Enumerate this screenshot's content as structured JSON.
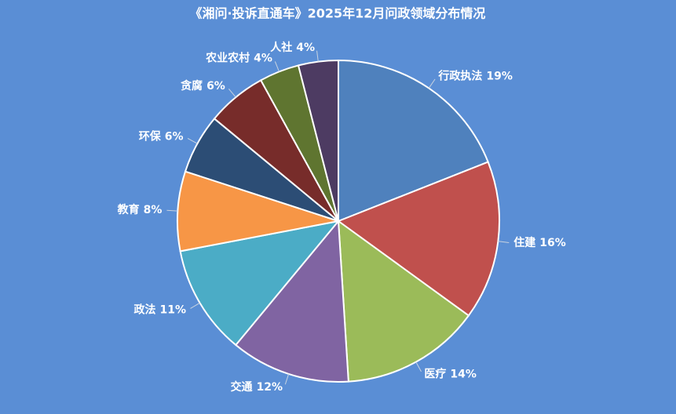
{
  "chart_data": {
    "type": "pie",
    "title": "《湘问·投诉直通车》2025年12月问政领域分布情况",
    "categories": [
      "行政执法",
      "住建",
      "医疗",
      "交通",
      "政法",
      "教育",
      "环保",
      "贪腐",
      "农业农村",
      "人社"
    ],
    "values": [
      19,
      16,
      14,
      12,
      11,
      8,
      6,
      6,
      4,
      4
    ],
    "value_labels": [
      "19%",
      "16%",
      "14%",
      "12%",
      "11%",
      "8%",
      "6%",
      "6%",
      "4%",
      "4%"
    ],
    "colors": [
      "#4f81bd",
      "#c0504d",
      "#9bbb59",
      "#8064a2",
      "#4bacc6",
      "#f79646",
      "#2c4d75",
      "#772c2a",
      "#5f7530",
      "#4d3b62"
    ]
  }
}
